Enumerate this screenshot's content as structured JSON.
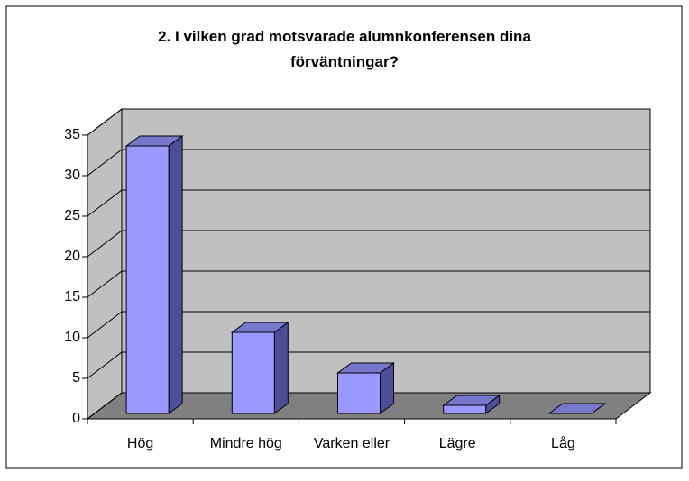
{
  "chart_data": {
    "type": "bar3d",
    "title": "2. I vilken grad motsvarade alumnkonferensen dina förväntningar?",
    "categories": [
      "Hög",
      "Mindre hög",
      "Varken eller",
      "Lägre",
      "Låg"
    ],
    "values": [
      33,
      10,
      5,
      1,
      0
    ],
    "color": "#9999ff",
    "ylim": [
      0,
      35
    ],
    "yticks": [
      0,
      5,
      10,
      15,
      20,
      25,
      30,
      35
    ],
    "grid": true
  }
}
